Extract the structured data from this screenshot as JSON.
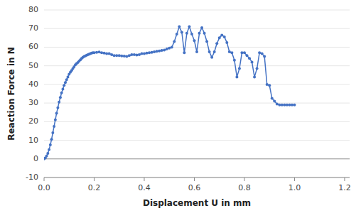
{
  "chart_data": {
    "type": "line",
    "x": [
      0.0,
      0.005,
      0.01,
      0.015,
      0.02,
      0.025,
      0.03,
      0.035,
      0.04,
      0.045,
      0.05,
      0.055,
      0.06,
      0.065,
      0.07,
      0.075,
      0.08,
      0.085,
      0.09,
      0.095,
      0.1,
      0.105,
      0.11,
      0.115,
      0.12,
      0.125,
      0.13,
      0.135,
      0.14,
      0.145,
      0.15,
      0.155,
      0.16,
      0.165,
      0.17,
      0.175,
      0.18,
      0.185,
      0.19,
      0.195,
      0.2,
      0.21,
      0.22,
      0.23,
      0.24,
      0.25,
      0.26,
      0.27,
      0.28,
      0.29,
      0.3,
      0.31,
      0.32,
      0.33,
      0.34,
      0.35,
      0.36,
      0.37,
      0.38,
      0.39,
      0.4,
      0.41,
      0.42,
      0.43,
      0.44,
      0.45,
      0.46,
      0.47,
      0.48,
      0.49,
      0.5,
      0.51,
      0.52,
      0.53,
      0.54,
      0.55,
      0.56,
      0.57,
      0.58,
      0.59,
      0.6,
      0.61,
      0.62,
      0.63,
      0.64,
      0.65,
      0.66,
      0.67,
      0.68,
      0.69,
      0.7,
      0.71,
      0.72,
      0.73,
      0.74,
      0.75,
      0.76,
      0.77,
      0.78,
      0.79,
      0.8,
      0.81,
      0.82,
      0.83,
      0.84,
      0.85,
      0.86,
      0.87,
      0.88,
      0.89,
      0.9,
      0.91,
      0.92,
      0.93,
      0.94,
      0.95,
      0.96,
      0.97,
      0.98,
      0.99,
      1.0
    ],
    "values": [
      0.0,
      0.5,
      1.5,
      3.0,
      5.0,
      7.5,
      10.5,
      14.0,
      17.5,
      21.0,
      24.5,
      27.5,
      30.5,
      33.0,
      35.5,
      37.5,
      39.5,
      41.0,
      42.5,
      44.0,
      45.5,
      46.5,
      47.5,
      48.5,
      49.5,
      50.5,
      51.2,
      51.8,
      52.5,
      53.2,
      54.0,
      54.5,
      55.0,
      55.3,
      55.7,
      56.0,
      56.3,
      56.5,
      56.8,
      57.0,
      57.0,
      57.2,
      57.4,
      57.0,
      56.8,
      56.5,
      56.5,
      56.0,
      55.5,
      55.5,
      55.5,
      55.3,
      55.2,
      55.0,
      55.5,
      56.0,
      56.0,
      55.8,
      56.0,
      56.5,
      56.5,
      56.8,
      57.0,
      57.2,
      57.5,
      57.8,
      58.0,
      58.3,
      58.5,
      59.0,
      59.5,
      60.0,
      63.0,
      67.0,
      71.0,
      68.0,
      57.0,
      67.5,
      71.0,
      67.0,
      63.5,
      57.5,
      67.5,
      70.5,
      67.5,
      63.0,
      57.5,
      54.5,
      57.5,
      62.0,
      65.0,
      66.5,
      65.5,
      62.5,
      57.5,
      57.0,
      53.0,
      44.0,
      48.5,
      57.0,
      57.0,
      55.5,
      54.0,
      52.0,
      44.0,
      48.5,
      57.0,
      56.5,
      55.0,
      40.0,
      39.5,
      32.5,
      31.0,
      29.5,
      29.0,
      29.0,
      29.0,
      29.0,
      29.0,
      29.0,
      29.0
    ],
    "color": "#4472C4",
    "marker": "circle",
    "xlabel": "Displacement U in mm",
    "ylabel": "Reaction Force in N",
    "xlim": [
      0.0,
      1.22
    ],
    "ylim": [
      -10,
      80
    ],
    "xticks": [
      {
        "value": 0.0,
        "label": "0.0"
      },
      0.2,
      0.4,
      0.6,
      0.8,
      {
        "value": 1.0,
        "label": "1.0"
      },
      1.2
    ],
    "yticks": [
      -10,
      0,
      10,
      20,
      30,
      40,
      50,
      60,
      70,
      80
    ],
    "grid": true
  }
}
